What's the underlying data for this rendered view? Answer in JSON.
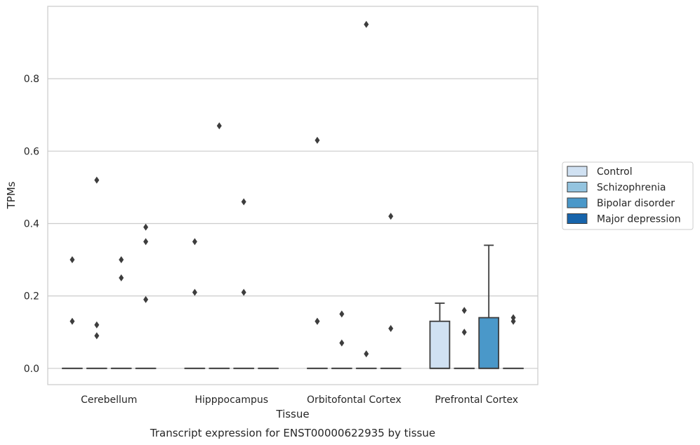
{
  "chart_data": {
    "type": "box",
    "caption": "Transcript expression for ENST00000622935 by tissue",
    "xlabel": "Tissue",
    "ylabel": "TPMs",
    "categories": [
      "Cerebellum",
      "Hipppocampus",
      "Orbitofontal Cortex",
      "Prefrontal Cortex"
    ],
    "ylim": [
      -0.045,
      1.0
    ],
    "yticks": [
      "0.0",
      "0.2",
      "0.4",
      "0.6",
      "0.8"
    ],
    "grid": true,
    "legend_position": "right",
    "series": [
      {
        "name": "Control",
        "color": "#d0e1f2",
        "boxes": [
          {
            "q1": 0,
            "median": 0,
            "q3": 0,
            "whisker_low": 0,
            "whisker_high": 0,
            "outliers": [
              0.13,
              0.3
            ]
          },
          {
            "q1": 0,
            "median": 0,
            "q3": 0,
            "whisker_low": 0,
            "whisker_high": 0,
            "outliers": [
              0.21,
              0.35
            ]
          },
          {
            "q1": 0,
            "median": 0,
            "q3": 0,
            "whisker_low": 0,
            "whisker_high": 0,
            "outliers": [
              0.13,
              0.13,
              0.63
            ]
          },
          {
            "q1": 0,
            "median": 0,
            "q3": 0.13,
            "whisker_low": 0,
            "whisker_high": 0.18,
            "outliers": []
          }
        ]
      },
      {
        "name": "Schizophrenia",
        "color": "#94c4df",
        "boxes": [
          {
            "q1": 0,
            "median": 0,
            "q3": 0,
            "whisker_low": 0,
            "whisker_high": 0,
            "outliers": [
              0.09,
              0.12,
              0.52
            ]
          },
          {
            "q1": 0,
            "median": 0,
            "q3": 0,
            "whisker_low": 0,
            "whisker_high": 0,
            "outliers": [
              0.67
            ]
          },
          {
            "q1": 0,
            "median": 0,
            "q3": 0,
            "whisker_low": 0,
            "whisker_high": 0,
            "outliers": [
              0.07,
              0.15
            ]
          },
          {
            "q1": 0,
            "median": 0,
            "q3": 0,
            "whisker_low": 0,
            "whisker_high": 0,
            "outliers": [
              0.1,
              0.16
            ]
          }
        ]
      },
      {
        "name": "Bipolar disorder",
        "color": "#4a98c9",
        "boxes": [
          {
            "q1": 0,
            "median": 0,
            "q3": 0,
            "whisker_low": 0,
            "whisker_high": 0,
            "outliers": [
              0.25,
              0.3
            ]
          },
          {
            "q1": 0,
            "median": 0,
            "q3": 0,
            "whisker_low": 0,
            "whisker_high": 0,
            "outliers": [
              0.21,
              0.46
            ]
          },
          {
            "q1": 0,
            "median": 0,
            "q3": 0,
            "whisker_low": 0,
            "whisker_high": 0,
            "outliers": [
              0.04,
              0.95
            ]
          },
          {
            "q1": 0,
            "median": 0,
            "q3": 0.14,
            "whisker_low": 0,
            "whisker_high": 0.34,
            "outliers": []
          }
        ]
      },
      {
        "name": "Major depression",
        "color": "#1764ab",
        "boxes": [
          {
            "q1": 0,
            "median": 0,
            "q3": 0,
            "whisker_low": 0,
            "whisker_high": 0,
            "outliers": [
              0.19,
              0.35,
              0.39
            ]
          },
          {
            "q1": 0,
            "median": 0,
            "q3": 0,
            "whisker_low": 0,
            "whisker_high": 0,
            "outliers": []
          },
          {
            "q1": 0,
            "median": 0,
            "q3": 0,
            "whisker_low": 0,
            "whisker_high": 0,
            "outliers": [
              0.11,
              0.42
            ]
          },
          {
            "q1": 0,
            "median": 0,
            "q3": 0,
            "whisker_low": 0,
            "whisker_high": 0,
            "outliers": [
              0.13,
              0.14
            ]
          }
        ]
      }
    ]
  },
  "colors": {
    "grid": "#cccccc",
    "frame": "#cccccc",
    "box_edge": "#3d3d3d",
    "outlier": "#3d3d3d",
    "text": "#262626"
  }
}
